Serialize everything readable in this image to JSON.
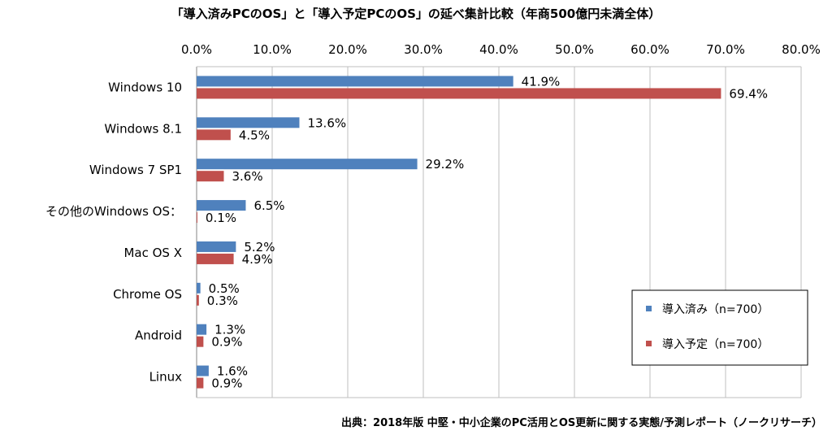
{
  "chart_data": {
    "type": "bar",
    "orientation": "horizontal",
    "title": "「導入済みPCのOS」と「導入予定PCのOS」の延べ集計比較（年商500億円未満全体）",
    "categories": [
      "Windows 10",
      "Windows 8.1",
      "Windows 7 SP1",
      "その他のWindows OS：",
      "Mac OS X",
      "Chrome OS",
      "Android",
      "Linux"
    ],
    "series": [
      {
        "name": "導入済み（n=700）",
        "color": "#4F81BD",
        "values": [
          41.9,
          13.6,
          29.2,
          6.5,
          5.2,
          0.5,
          1.3,
          1.6
        ],
        "labels": [
          "41.9%",
          "13.6%",
          "29.2%",
          "6.5%",
          "5.2%",
          "0.5%",
          "1.3%",
          "1.6%"
        ]
      },
      {
        "name": "導入予定（n=700）",
        "color": "#C0504D",
        "values": [
          69.4,
          4.5,
          3.6,
          0.1,
          4.9,
          0.3,
          0.9,
          0.9
        ],
        "labels": [
          "69.4%",
          "4.5%",
          "3.6%",
          "0.1%",
          "4.9%",
          "0.3%",
          "0.9%",
          "0.9%"
        ]
      }
    ],
    "xlim": [
      0,
      80
    ],
    "xticks": [
      "0.0%",
      "10.0%",
      "20.0%",
      "30.0%",
      "40.0%",
      "50.0%",
      "60.0%",
      "70.0%",
      "80.0%"
    ],
    "axis_position": "top",
    "grid": true,
    "legend_position": "bottom-right"
  },
  "source": "出典：2018年版 中堅・中小企業のPC活用とOS更新に関する実態/予測レポート（ノークリサーチ）"
}
